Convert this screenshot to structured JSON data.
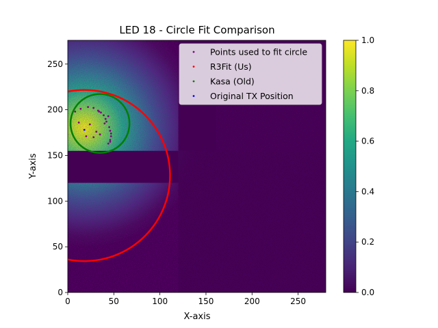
{
  "chart_data": {
    "type": "heatmap",
    "title": "LED 18 - Circle Fit Comparison",
    "xlabel": "X-axis",
    "ylabel": "Y-axis",
    "xlim": [
      0,
      280
    ],
    "ylim": [
      0,
      276
    ],
    "x_ticks": [
      0,
      50,
      100,
      150,
      200,
      250
    ],
    "y_ticks": [
      0,
      50,
      100,
      150,
      200,
      250
    ],
    "colormap": "viridis",
    "colorbar": {
      "range": [
        0,
        1
      ],
      "ticks": [
        "0.0",
        "0.2",
        "0.4",
        "0.6",
        "0.8",
        "1.0"
      ]
    },
    "heatmap_description": {
      "bright_center": [
        18,
        180
      ],
      "dark_horizontal_band_y": [
        120,
        155
      ],
      "dark_horizontal_band_x": [
        0,
        120
      ],
      "dark_vertical_band_x": [
        120,
        160
      ],
      "dark_vertical_band_y": [
        155,
        276
      ]
    },
    "circles": [
      {
        "name": "R3Fit (Us)",
        "center": [
          18,
          128
        ],
        "radius": 93,
        "color": "#ff0000"
      },
      {
        "name": "Kasa (Old)",
        "center": [
          35,
          185
        ],
        "radius": 32,
        "color": "#008000"
      }
    ],
    "series": [
      {
        "name": "Points used to fit circle",
        "color": "#800080",
        "points": [
          [
            22,
            203
          ],
          [
            28,
            202
          ],
          [
            33,
            199
          ],
          [
            36,
            197
          ],
          [
            39,
            194
          ],
          [
            41,
            190
          ],
          [
            42,
            187
          ],
          [
            45,
            181
          ],
          [
            46,
            177
          ],
          [
            47,
            174
          ],
          [
            47,
            171
          ],
          [
            46,
            167
          ],
          [
            46,
            165
          ],
          [
            44,
            163
          ],
          [
            31,
            176
          ],
          [
            40,
            185
          ],
          [
            14,
            201
          ],
          [
            8,
            198
          ],
          [
            20,
            171
          ],
          [
            28,
            170
          ],
          [
            35,
            173
          ],
          [
            24,
            184
          ],
          [
            12,
            186
          ],
          [
            44,
            193
          ],
          [
            34,
            198
          ]
        ]
      },
      {
        "name": "Original TX Position",
        "color": "#0000ff",
        "points": [
          [
            18,
            178
          ]
        ]
      }
    ],
    "legend": {
      "position": "top-right",
      "entries": [
        {
          "label": "Points used to fit circle",
          "color": "#800080"
        },
        {
          "label": "R3Fit (Us)",
          "color": "#ff0000"
        },
        {
          "label": "Kasa (Old)",
          "color": "#008000"
        },
        {
          "label": "Original TX Position",
          "color": "#0000ff"
        }
      ]
    }
  }
}
